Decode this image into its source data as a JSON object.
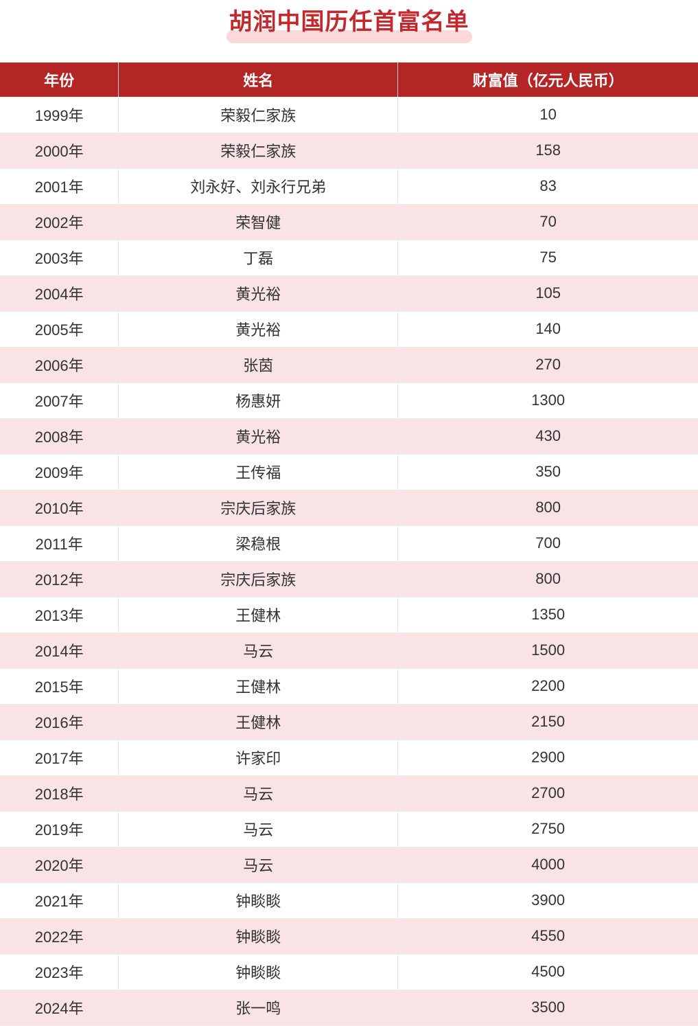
{
  "chart_data": {
    "type": "table",
    "title": "胡润中国历任首富名单",
    "columns": [
      "年份",
      "姓名",
      "财富值（亿元人民币）"
    ],
    "rows": [
      [
        "1999年",
        "荣毅仁家族",
        "10"
      ],
      [
        "2000年",
        "荣毅仁家族",
        "158"
      ],
      [
        "2001年",
        "刘永好、刘永行兄弟",
        "83"
      ],
      [
        "2002年",
        "荣智健",
        "70"
      ],
      [
        "2003年",
        "丁磊",
        "75"
      ],
      [
        "2004年",
        "黄光裕",
        "105"
      ],
      [
        "2005年",
        "黄光裕",
        "140"
      ],
      [
        "2006年",
        "张茵",
        "270"
      ],
      [
        "2007年",
        "杨惠妍",
        "1300"
      ],
      [
        "2008年",
        "黄光裕",
        "430"
      ],
      [
        "2009年",
        "王传福",
        "350"
      ],
      [
        "2010年",
        "宗庆后家族",
        "800"
      ],
      [
        "2011年",
        "梁稳根",
        "700"
      ],
      [
        "2012年",
        "宗庆后家族",
        "800"
      ],
      [
        "2013年",
        "王健林",
        "1350"
      ],
      [
        "2014年",
        "马云",
        "1500"
      ],
      [
        "2015年",
        "王健林",
        "2200"
      ],
      [
        "2016年",
        "王健林",
        "2150"
      ],
      [
        "2017年",
        "许家印",
        "2900"
      ],
      [
        "2018年",
        "马云",
        "2700"
      ],
      [
        "2019年",
        "马云",
        "2750"
      ],
      [
        "2020年",
        "马云",
        "4000"
      ],
      [
        "2021年",
        "钟睒睒",
        "3900"
      ],
      [
        "2022年",
        "钟睒睒",
        "4550"
      ],
      [
        "2023年",
        "钟睒睒",
        "4500"
      ],
      [
        "2024年",
        "张一鸣",
        "3500"
      ]
    ],
    "layout_hints": {
      "alternating_row_stripes": true,
      "stripe_pattern": "odd rows white, even rows pink",
      "all_columns_center_aligned": true,
      "last_row_clipped_at_bottom": true
    }
  },
  "colors": {
    "header_bg": "#B42626",
    "title_color": "#C3282C",
    "title_highlight": "#FBD9DA",
    "row_alt_bg": "#F9E3E5",
    "text_color": "#333333"
  }
}
